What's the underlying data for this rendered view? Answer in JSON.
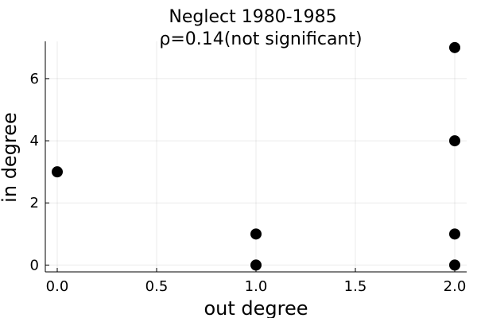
{
  "chart_data": {
    "type": "scatter",
    "title": "Neglect 1980-1985",
    "subtitle": "ρ=0.14(not significant)",
    "xlabel": "out degree",
    "ylabel": "in degree",
    "xlim": [
      -0.06,
      2.06
    ],
    "ylim": [
      -0.22,
      7.2
    ],
    "xticks": [
      0.0,
      0.5,
      1.0,
      1.5,
      2.0
    ],
    "xtick_labels": [
      "0.0",
      "0.5",
      "1.0",
      "1.5",
      "2.0"
    ],
    "yticks": [
      0,
      2,
      4,
      6
    ],
    "ytick_labels": [
      "0",
      "2",
      "4",
      "6"
    ],
    "grid": true,
    "legend": "none",
    "marker_color": "#000000",
    "points": [
      {
        "x": 0.0,
        "y": 3
      },
      {
        "x": 1.0,
        "y": 1
      },
      {
        "x": 1.0,
        "y": 0
      },
      {
        "x": 2.0,
        "y": 7
      },
      {
        "x": 2.0,
        "y": 4
      },
      {
        "x": 2.0,
        "y": 1
      },
      {
        "x": 2.0,
        "y": 0
      }
    ]
  }
}
